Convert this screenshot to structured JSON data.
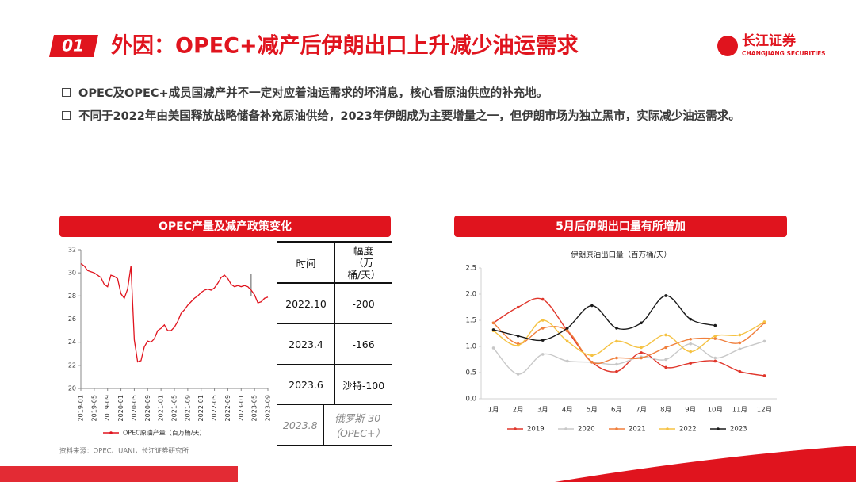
{
  "header": {
    "number": "01",
    "title": "外因：OPEC+减产后伊朗出口上升减少油运需求",
    "logo": "长江证券",
    "logo_en": "CHANGJIANG SECURITIES"
  },
  "bullets": [
    "OPEC及OPEC+成员国减产并不一定对应着油运需求的坏消息，核心看原油供应的补充地。",
    "不同于2022年由美国释放战略储备补充原油供给，2023年伊朗成为主要增量之一，但伊朗市场为独立黑市，实际减少油运需求。"
  ],
  "panels": [
    "OPEC产量及减产政策变化",
    "5月后伊朗出口量有所增加"
  ],
  "table": {
    "header": [
      "时间",
      "幅度（万桶/天）"
    ],
    "rows": [
      [
        "2022.10",
        "-200"
      ],
      [
        "2023.4",
        "-166"
      ],
      [
        "2023.6",
        "沙特-100"
      ],
      [
        "2023.8",
        "俄罗斯-30（OPEC+）"
      ]
    ]
  },
  "source": "资料来源：OPEC、UANI，长江证券研究所",
  "chart_data": [
    {
      "type": "line",
      "categories": [
        "2019-01",
        null,
        null,
        null,
        "2019-05",
        null,
        null,
        null,
        "2019-09",
        null,
        null,
        null,
        "2020-01",
        null,
        null,
        null,
        "2020-05",
        null,
        null,
        null,
        "2020-09",
        null,
        null,
        null,
        "2021-01",
        null,
        null,
        null,
        "2021-05",
        null,
        null,
        null,
        "2021-09",
        null,
        null,
        null,
        "2022-01",
        null,
        null,
        null,
        "2022-05",
        null,
        null,
        null,
        "2022-09",
        null,
        null,
        null,
        "2023-01",
        null,
        null,
        null,
        "2023-05",
        null,
        null,
        null,
        "2023-09"
      ],
      "series": [
        {
          "name": "OPEC原油产量（百万桶/天）",
          "color": "#e0141e",
          "values": [
            30.8,
            30.6,
            30.2,
            30.1,
            30.0,
            29.8,
            29.6,
            29.0,
            28.8,
            29.8,
            29.7,
            29.5,
            28.2,
            27.8,
            28.6,
            30.6,
            24.2,
            22.3,
            22.4,
            23.6,
            24.1,
            24.0,
            24.3,
            25.0,
            25.2,
            25.5,
            25.0,
            25.0,
            25.3,
            25.8,
            26.5,
            26.8,
            27.2,
            27.5,
            27.8,
            28.0,
            28.3,
            28.5,
            28.6,
            28.5,
            28.7,
            29.1,
            29.6,
            29.8,
            29.5,
            29.0,
            28.8,
            28.9,
            28.8,
            28.9,
            28.8,
            28.5,
            28.1,
            27.4,
            27.5,
            27.8,
            27.9
          ]
        }
      ],
      "ylim": [
        20,
        32
      ],
      "yticks": [
        20,
        22,
        24,
        26,
        28,
        30,
        32
      ],
      "smooth": false
    },
    {
      "type": "line",
      "title": "伊朗原油出口量（百万桶/天）",
      "categories": [
        "1月",
        "2月",
        "3月",
        "4月",
        "5月",
        "6月",
        "7月",
        "8月",
        "9月",
        "10月",
        "11月",
        "12月"
      ],
      "series": [
        {
          "name": "2019",
          "color": "#e0362b",
          "values": [
            1.45,
            1.75,
            1.9,
            1.3,
            0.7,
            0.52,
            0.88,
            0.6,
            0.68,
            0.72,
            0.52,
            0.44
          ]
        },
        {
          "name": "2020",
          "color": "#c8c8c8",
          "values": [
            0.97,
            0.47,
            0.85,
            0.72,
            0.7,
            0.66,
            0.8,
            0.75,
            1.05,
            0.78,
            0.95,
            1.1
          ]
        },
        {
          "name": "2021",
          "color": "#f07f3c",
          "values": [
            1.45,
            1.05,
            1.35,
            1.3,
            0.7,
            0.78,
            0.78,
            0.98,
            1.14,
            1.15,
            1.07,
            1.45
          ]
        },
        {
          "name": "2022",
          "color": "#f5c242",
          "values": [
            1.3,
            1.02,
            1.5,
            1.1,
            0.83,
            1.1,
            0.98,
            1.22,
            0.9,
            1.2,
            1.22,
            1.47
          ]
        },
        {
          "name": "2023",
          "color": "#1a1a1a",
          "values": [
            1.32,
            1.2,
            1.12,
            1.35,
            1.78,
            1.35,
            1.45,
            1.97,
            1.52,
            1.4,
            null,
            null
          ]
        }
      ],
      "ylim": [
        0,
        2.5
      ],
      "yticks": [
        {
          "value": 0,
          "label": "0.0"
        },
        0.5,
        {
          "value": 1,
          "label": "1.0"
        },
        1.5,
        {
          "value": 2,
          "label": "2.0"
        },
        2.5
      ],
      "smooth": true
    }
  ]
}
